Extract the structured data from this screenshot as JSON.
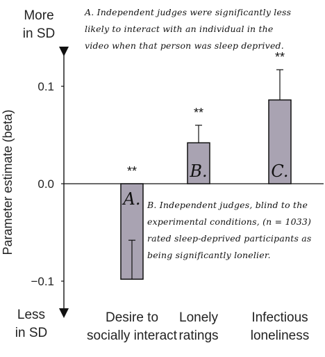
{
  "chart_data": {
    "type": "bar",
    "ylabel": "Parameter estimate (beta)",
    "ylim": [
      -0.125,
      0.145
    ],
    "yticks": [
      {
        "value": 0.1,
        "label": "0.1"
      },
      {
        "value": 0.0,
        "label": "0.0"
      },
      {
        "value": -0.1,
        "label": "−0.1"
      }
    ],
    "top_label": [
      "More",
      "in SD"
    ],
    "bottom_label": [
      "Less",
      "in SD"
    ],
    "categories": [
      {
        "lines": [
          "Desire to",
          "socially interact"
        ],
        "letter": "A.",
        "value": -0.098,
        "error": 0.04,
        "significance": "**"
      },
      {
        "lines": [
          "Lonely",
          "ratings"
        ],
        "letter": "B.",
        "value": 0.042,
        "error": 0.018,
        "significance": "**"
      },
      {
        "lines": [
          "Infectious",
          "loneliness"
        ],
        "letter": "C.",
        "value": 0.086,
        "error": 0.031,
        "significance": "**"
      }
    ],
    "bar_color": "#a9a3b2",
    "annotations": {
      "a": "A. Independent judges were significantly less likely to interact with an individual in the video when that person was sleep deprived.",
      "b": "B. Independent judges, blind to the experimental conditions, (n = 1033) rated sleep-deprived participants as being significantly lonelier."
    }
  }
}
